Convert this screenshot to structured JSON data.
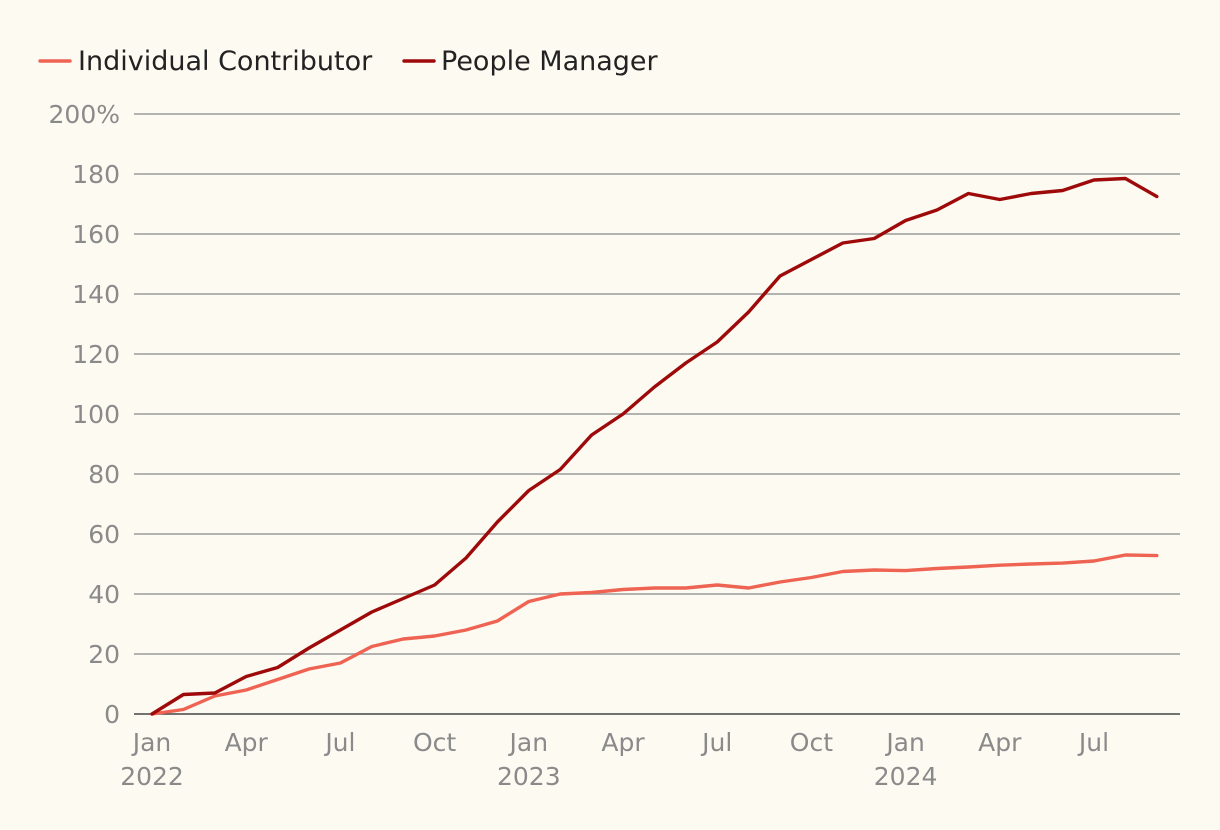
{
  "chart_data": {
    "type": "line",
    "title": "",
    "xlabel": "",
    "ylabel": "",
    "ylim": [
      0,
      200
    ],
    "grid": true,
    "legend_position": "top-left",
    "y_ticks": [
      {
        "value": 0,
        "label": "0"
      },
      {
        "value": 20,
        "label": "20"
      },
      {
        "value": 40,
        "label": "40"
      },
      {
        "value": 60,
        "label": "60"
      },
      {
        "value": 80,
        "label": "80"
      },
      {
        "value": 100,
        "label": "100"
      },
      {
        "value": 120,
        "label": "120"
      },
      {
        "value": 140,
        "label": "140"
      },
      {
        "value": 160,
        "label": "160"
      },
      {
        "value": 180,
        "label": "180"
      },
      {
        "value": 200,
        "label": "200%"
      }
    ],
    "x_ticks": [
      {
        "index": 0,
        "label": "Jan",
        "year": "2022"
      },
      {
        "index": 3,
        "label": "Apr",
        "year": ""
      },
      {
        "index": 6,
        "label": "Jul",
        "year": ""
      },
      {
        "index": 9,
        "label": "Oct",
        "year": ""
      },
      {
        "index": 12,
        "label": "Jan",
        "year": "2023"
      },
      {
        "index": 15,
        "label": "Apr",
        "year": ""
      },
      {
        "index": 18,
        "label": "Jul",
        "year": ""
      },
      {
        "index": 21,
        "label": "Oct",
        "year": ""
      },
      {
        "index": 24,
        "label": "Jan",
        "year": "2024"
      },
      {
        "index": 27,
        "label": "Apr",
        "year": ""
      },
      {
        "index": 30,
        "label": "Jul",
        "year": ""
      }
    ],
    "x_count": 33,
    "series": [
      {
        "name": "Individual Contributor",
        "color": "#ee6352",
        "values": [
          0,
          1.5,
          6,
          8,
          11.5,
          15,
          17,
          22.5,
          25,
          26,
          28,
          31,
          37.5,
          40,
          40.5,
          41.5,
          42,
          42,
          43,
          42,
          44,
          45.5,
          47.5,
          48,
          47.8,
          48.5,
          49,
          49.6,
          50,
          50.3,
          51,
          53,
          52.8
        ]
      },
      {
        "name": "People Manager",
        "color": "#9e0a0a",
        "values": [
          0,
          6.5,
          7,
          12.5,
          15.5,
          22,
          28,
          34,
          38.5,
          43,
          52,
          64,
          74.5,
          81.5,
          93,
          100,
          109,
          117,
          124,
          134,
          146,
          151.5,
          157,
          158.5,
          164.5,
          168,
          173.5,
          171.5,
          173.5,
          174.5,
          178,
          178.5,
          172.5
        ]
      }
    ]
  }
}
